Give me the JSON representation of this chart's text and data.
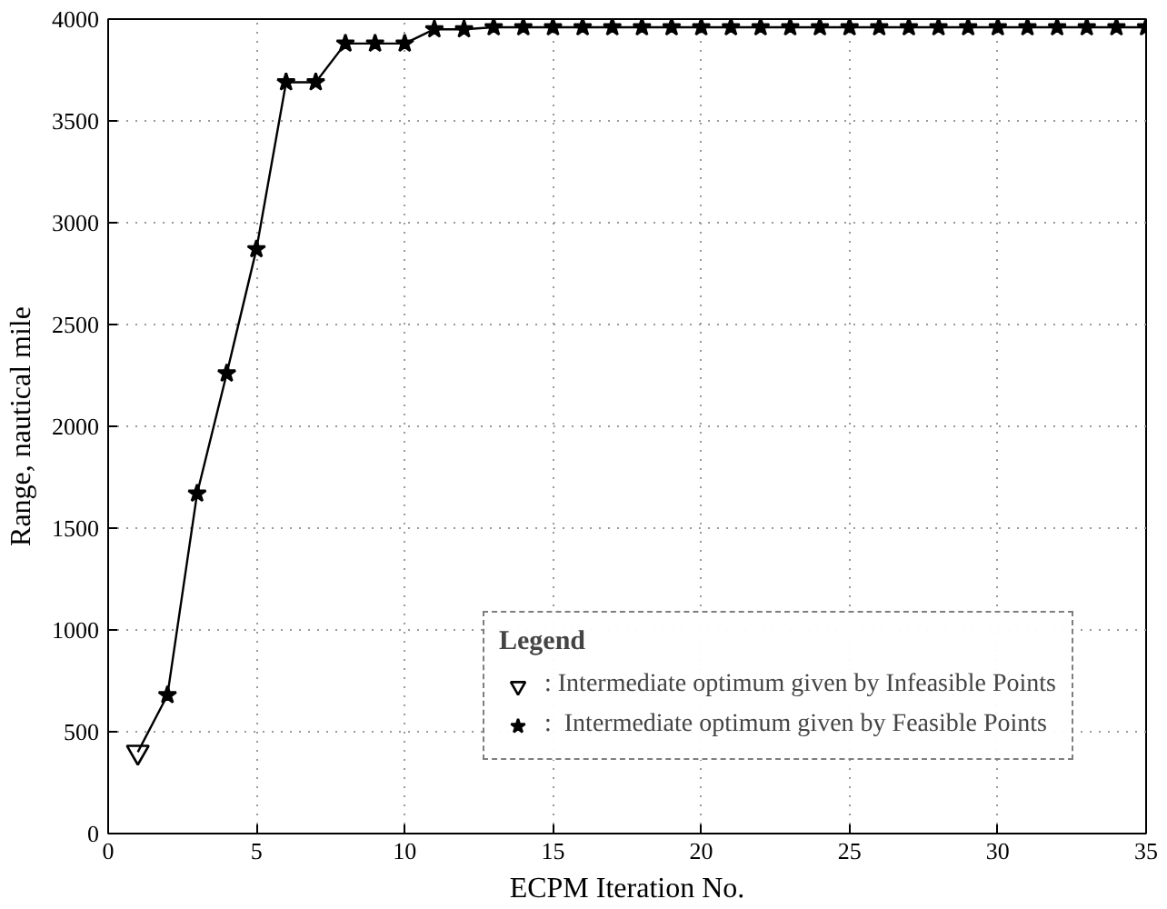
{
  "chart_data": {
    "type": "line",
    "xlabel": "ECPM Iteration No.",
    "ylabel": "Range, nautical mile",
    "legend_title": "Legend",
    "xlim": [
      0,
      35
    ],
    "xticks": [
      0,
      5,
      10,
      15,
      20,
      25,
      30,
      35
    ],
    "ylim": [
      0,
      4000
    ],
    "yticks": [
      0,
      500,
      1000,
      1500,
      2000,
      2500,
      3000,
      3500,
      4000
    ],
    "grid": true,
    "legend": "bottom right",
    "line_style": "solid",
    "series": [
      {
        "type": "line",
        "marker": "none",
        "color": "#000000",
        "x": [
          1,
          2,
          3,
          4,
          5,
          6,
          7,
          8,
          9,
          10,
          11,
          12,
          13,
          14,
          15,
          16,
          17,
          18,
          19,
          20,
          21,
          22,
          23,
          24,
          25,
          26,
          27,
          28,
          29,
          30,
          31,
          32,
          33,
          34,
          35
        ],
        "values": [
          400,
          680,
          1670,
          2260,
          2870,
          3690,
          3690,
          3880,
          3880,
          3880,
          3950,
          3950,
          3960,
          3960,
          3960,
          3960,
          3960,
          3960,
          3960,
          3960,
          3960,
          3960,
          3960,
          3960,
          3960,
          3960,
          3960,
          3960,
          3960,
          3960,
          3960,
          3960,
          3960,
          3960,
          3960
        ]
      },
      {
        "type": "scatter",
        "marker": "triangle",
        "name": ": Intermediate optimum given by Infeasible Points",
        "color": "#000000",
        "x": [
          1
        ],
        "values": [
          400
        ]
      },
      {
        "type": "scatter",
        "marker": "star",
        "name": ":  Intermediate optimum given by Feasible Points",
        "color": "#000000",
        "x": [
          2,
          3,
          4,
          5,
          6,
          7,
          8,
          9,
          10,
          11,
          12,
          13,
          14,
          15,
          16,
          17,
          18,
          19,
          20,
          21,
          22,
          23,
          24,
          25,
          26,
          27,
          28,
          29,
          30,
          31,
          32,
          33,
          34,
          35
        ],
        "values": [
          680,
          1670,
          2260,
          2870,
          3690,
          3690,
          3880,
          3880,
          3880,
          3950,
          3950,
          3960,
          3960,
          3960,
          3960,
          3960,
          3960,
          3960,
          3960,
          3960,
          3960,
          3960,
          3960,
          3960,
          3960,
          3960,
          3960,
          3960,
          3960,
          3960,
          3960,
          3960,
          3960,
          3960
        ]
      }
    ]
  }
}
